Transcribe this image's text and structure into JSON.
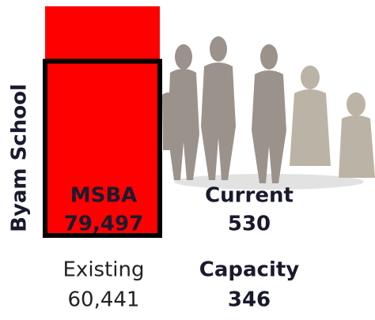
{
  "chart_data": {
    "type": "bar",
    "title": "Byam School",
    "categories": [
      "MSBA",
      "Existing"
    ],
    "values": [
      79497,
      60441
    ],
    "value_labels": [
      "79,497",
      "60,441"
    ],
    "colors": [
      "#ff0000",
      "#000000"
    ]
  },
  "enrollment": {
    "current_label": "Current",
    "current": 530,
    "capacity_label": "Capacity",
    "capacity": 346
  }
}
